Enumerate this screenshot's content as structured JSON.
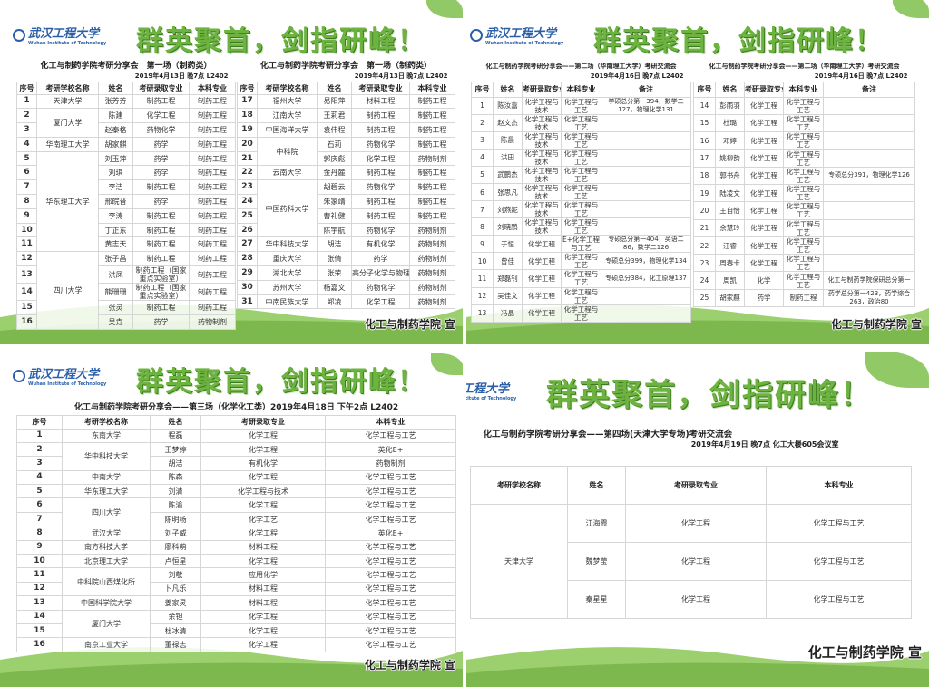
{
  "logo": {
    "cn": "武汉工程大学",
    "en": "Wuhan Institute of Technology"
  },
  "banner": "群英聚首，剑指研峰！",
  "footer": "化工与制药学院 宣",
  "colors": {
    "banner_green": "#6db33f",
    "logo_blue": "#2b5fa8",
    "hill_green": "#9ccf6e"
  },
  "p1": {
    "title": "化工与制药学院考研分享会　第一场（制药类）",
    "subtitle": "2019年4月13日 晚7点 L2402",
    "headers": [
      "序号",
      "考研学校名称",
      "姓名",
      "考研录取专业",
      "本科专业"
    ],
    "left": [
      {
        "school": "天津大学",
        "rows": [
          [
            "1",
            "张芳芳",
            "制药工程",
            "制药工程"
          ]
        ]
      },
      {
        "school": "厦门大学",
        "rows": [
          [
            "2",
            "陈建",
            "化学工程",
            "制药工程"
          ],
          [
            "3",
            "赵泰格",
            "药物化学",
            "制药工程"
          ]
        ]
      },
      {
        "school": "华南理工大学",
        "rows": [
          [
            "4",
            "胡家麒",
            "药学",
            "制药工程"
          ]
        ]
      },
      {
        "school": "华东理工大学",
        "rows": [
          [
            "5",
            "刘玉萍",
            "药学",
            "制药工程"
          ],
          [
            "6",
            "刘琪",
            "药学",
            "制药工程"
          ],
          [
            "7",
            "李洁",
            "制药工程",
            "制药工程"
          ],
          [
            "8",
            "邢皖晋",
            "药学",
            "制药工程"
          ],
          [
            "9",
            "李涛",
            "制药工程",
            "制药工程"
          ],
          [
            "10",
            "丁正东",
            "制药工程",
            "制药工程"
          ],
          [
            "11",
            "黄志天",
            "制药工程",
            "制药工程"
          ]
        ]
      },
      {
        "school": "四川大学",
        "rows": [
          [
            "12",
            "张子昌",
            "制药工程",
            "制药工程"
          ],
          [
            "13",
            "洪凤",
            "制药工程（国家重点实验室）",
            "制药工程"
          ],
          [
            "14",
            "熊珊珊",
            "制药工程（国家重点实验室）",
            "制药工程"
          ],
          [
            "15",
            "张灵",
            "制药工程",
            "制药工程"
          ],
          [
            "16",
            "吴垚",
            "药学",
            "药物制剂"
          ]
        ]
      }
    ],
    "right": [
      {
        "school": "福州大学",
        "rows": [
          [
            "17",
            "易阳萍",
            "材料工程",
            "制药工程"
          ]
        ]
      },
      {
        "school": "江南大学",
        "rows": [
          [
            "18",
            "王莉君",
            "制药工程",
            "制药工程"
          ]
        ]
      },
      {
        "school": "中国海洋大学",
        "rows": [
          [
            "19",
            "袁伟程",
            "制药工程",
            "制药工程"
          ]
        ]
      },
      {
        "school": "中科院",
        "rows": [
          [
            "20",
            "石莉",
            "药物化学",
            "制药工程"
          ],
          [
            "21",
            "郭庆彪",
            "化学工程",
            "药物制剂"
          ]
        ]
      },
      {
        "school": "云南大学",
        "rows": [
          [
            "22",
            "金丹麓",
            "制药工程",
            "制药工程"
          ]
        ]
      },
      {
        "school": "中国药科大学",
        "rows": [
          [
            "23",
            "胡碧云",
            "药物化学",
            "制药工程"
          ],
          [
            "24",
            "朱家靖",
            "制药工程",
            "制药工程"
          ],
          [
            "25",
            "曹礼健",
            "制药工程",
            "制药工程"
          ],
          [
            "26",
            "陈宇航",
            "药物化学",
            "药物制剂"
          ]
        ]
      },
      {
        "school": "华中科技大学",
        "rows": [
          [
            "27",
            "胡洁",
            "有机化学",
            "药物制剂"
          ]
        ]
      },
      {
        "school": "重庆大学",
        "rows": [
          [
            "28",
            "张倩",
            "药学",
            "药物制剂"
          ]
        ]
      },
      {
        "school": "湖北大学",
        "rows": [
          [
            "29",
            "张荣",
            "高分子化学与物理",
            "药物制剂"
          ]
        ]
      },
      {
        "school": "苏州大学",
        "rows": [
          [
            "30",
            "杨嘉文",
            "药物化学",
            "药物制剂"
          ]
        ]
      },
      {
        "school": "中南民族大学",
        "rows": [
          [
            "31",
            "郑凌",
            "化学工程",
            "药物制剂"
          ]
        ]
      }
    ]
  },
  "p2": {
    "title": "化工与制药学院考研分享会——第二场（华南理工大学）考研交流会",
    "subtitle": "2019年4月16日 晚7点 L2402",
    "headers": [
      "序号",
      "姓名",
      "考研录取专业",
      "本科专业",
      "备注"
    ],
    "left": [
      [
        "1",
        "陈汝嘉",
        "化学工程与技术",
        "化学工程与工艺",
        "学硕总分第一394，数学二127，物理化学131"
      ],
      [
        "2",
        "赵文杰",
        "化学工程与技术",
        "化学工程与工艺",
        ""
      ],
      [
        "3",
        "陈晨",
        "化学工程与技术",
        "化学工程与工艺",
        ""
      ],
      [
        "4",
        "洪田",
        "化学工程与技术",
        "化学工程与工艺",
        ""
      ],
      [
        "5",
        "武鹏杰",
        "化学工程与技术",
        "化学工程与工艺",
        ""
      ],
      [
        "6",
        "张思凡",
        "化学工程与技术",
        "化学工程与工艺",
        ""
      ],
      [
        "7",
        "刘燕妮",
        "化学工程与技术",
        "化学工程与工艺",
        ""
      ],
      [
        "8",
        "刘晓鹏",
        "化学工程与技术",
        "化学工程与工艺",
        ""
      ],
      [
        "9",
        "于恒",
        "化学工程",
        "E+化学工程与工艺",
        "专硕总分第一404，英语二86，数学二126"
      ],
      [
        "10",
        "曾佳",
        "化学工程",
        "化学工程与工艺",
        "专硕总分399，物理化学134"
      ],
      [
        "11",
        "郑磊钊",
        "化学工程",
        "化学工程与工艺",
        "专硕总分384，化工原理137"
      ],
      [
        "12",
        "吴佳文",
        "化学工程",
        "化学工程与工艺",
        ""
      ],
      [
        "13",
        "冯晶",
        "化学工程",
        "化学工程与工艺",
        ""
      ]
    ],
    "right": [
      [
        "14",
        "彭雨羽",
        "化学工程",
        "化学工程与工艺",
        ""
      ],
      [
        "15",
        "杜璐",
        "化学工程",
        "化学工程与工艺",
        ""
      ],
      [
        "16",
        "邓婷",
        "化学工程",
        "化学工程与工艺",
        ""
      ],
      [
        "17",
        "姚柳韵",
        "化学工程",
        "化学工程与工艺",
        ""
      ],
      [
        "18",
        "郭书舟",
        "化学工程",
        "化学工程与工艺",
        "专硕总分391，物理化学126"
      ],
      [
        "19",
        "陆凌文",
        "化学工程",
        "化学工程与工艺",
        ""
      ],
      [
        "20",
        "王自怡",
        "化学工程",
        "化学工程与工艺",
        ""
      ],
      [
        "21",
        "余慧玲",
        "化学工程",
        "化学工程与工艺",
        ""
      ],
      [
        "22",
        "汪睿",
        "化学工程",
        "化学工程与工艺",
        ""
      ],
      [
        "23",
        "周春卡",
        "化学工程",
        "化学工程与工艺",
        ""
      ],
      [
        "24",
        "周凯",
        "化学",
        "化学工程与工艺",
        "化工与制药学院保研总分第一"
      ],
      [
        "25",
        "胡家麒",
        "药学",
        "制药工程",
        "药学总分第一423，药学综合263，政治80"
      ]
    ]
  },
  "p3": {
    "title": "化工与制药学院考研分享会——第三场（化学化工类）2019年4月18日 下午2点 L2402",
    "headers": [
      "序号",
      "考研学校名称",
      "姓名",
      "考研录取专业",
      "本科专业"
    ],
    "groups": [
      {
        "school": "东南大学",
        "rows": [
          [
            "1",
            "程磊",
            "化学工程",
            "化学工程与工艺"
          ]
        ]
      },
      {
        "school": "华中科技大学",
        "rows": [
          [
            "2",
            "王梦婷",
            "化学工程",
            "英化E+"
          ],
          [
            "3",
            "胡洁",
            "有机化学",
            "药物制剂"
          ]
        ]
      },
      {
        "school": "中南大学",
        "rows": [
          [
            "4",
            "陈森",
            "化学工程",
            "化学工程与工艺"
          ]
        ]
      },
      {
        "school": "华东理工大学",
        "rows": [
          [
            "5",
            "刘清",
            "化学工程与技术",
            "化学工程与工艺"
          ]
        ]
      },
      {
        "school": "四川大学",
        "rows": [
          [
            "6",
            "陈渝",
            "化学工程",
            "化学工程与工艺"
          ],
          [
            "7",
            "陈明杨",
            "化学工艺",
            "化学工程与工艺"
          ]
        ]
      },
      {
        "school": "武汉大学",
        "rows": [
          [
            "8",
            "刘子威",
            "化学工程",
            "英化E+"
          ]
        ]
      },
      {
        "school": "南方科技大学",
        "rows": [
          [
            "9",
            "廖科萌",
            "材料工程",
            "化学工程与工艺"
          ]
        ]
      },
      {
        "school": "北京理工大学",
        "rows": [
          [
            "10",
            "卢恒星",
            "化学工程",
            "化学工程与工艺"
          ]
        ]
      },
      {
        "school": "中科院山西煤化所",
        "rows": [
          [
            "11",
            "刘敬",
            "应用化学",
            "化学工程与工艺"
          ],
          [
            "12",
            "卜凡乐",
            "材料工程",
            "化学工程与工艺"
          ]
        ]
      },
      {
        "school": "中国科学院大学",
        "rows": [
          [
            "13",
            "姜家灵",
            "材料工程",
            "化学工程与工艺"
          ]
        ]
      },
      {
        "school": "厦门大学",
        "rows": [
          [
            "14",
            "余钽",
            "化学工程",
            "化学工程与工艺"
          ],
          [
            "15",
            "杜冰清",
            "化学工程",
            "化学工程与工艺"
          ]
        ]
      },
      {
        "school": "南京工业大学",
        "rows": [
          [
            "16",
            "董禄志",
            "化学工程",
            "化学工程与工艺"
          ]
        ]
      }
    ]
  },
  "p4": {
    "title": "化工与制药学院考研分享会——第四场(天津大学专场)考研交流会",
    "subtitle": "2019年4月19日 晚7点 化工大楼605会议室",
    "headers": [
      "考研学校名称",
      "姓名",
      "考研录取专业",
      "本科专业"
    ],
    "groups": [
      {
        "school": "天津大学",
        "rows": [
          [
            "江海霞",
            "化学工程",
            "化学工程与工艺"
          ],
          [
            "魏梦莹",
            "化学工程",
            "化学工程与工艺"
          ],
          [
            "秦星星",
            "化学工程",
            "化学工程与工艺"
          ]
        ]
      }
    ]
  }
}
